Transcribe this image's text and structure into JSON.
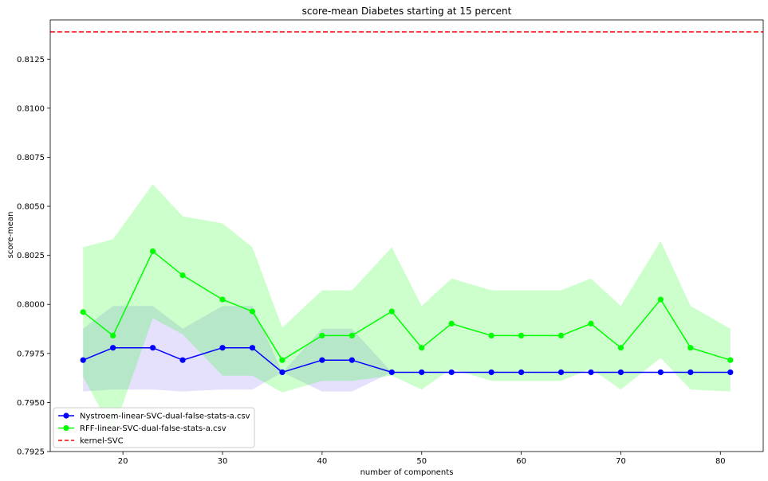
{
  "chart_data": {
    "type": "line",
    "title": "score-mean Diabetes starting at 15 percent",
    "xlabel": "number of components",
    "ylabel": "score-mean",
    "xlim": [
      12.7,
      84.3
    ],
    "ylim": [
      0.7925,
      0.8145
    ],
    "xticks": [
      20,
      30,
      40,
      50,
      60,
      70,
      80
    ],
    "yticks": [
      0.7925,
      0.795,
      0.7975,
      0.8,
      0.8025,
      0.805,
      0.8075,
      0.81,
      0.8125
    ],
    "xtick_labels": [
      "20",
      "30",
      "40",
      "50",
      "60",
      "70",
      "80"
    ],
    "ytick_labels": [
      "0.7925",
      "0.7950",
      "0.7975",
      "0.8000",
      "0.8025",
      "0.8050",
      "0.8075",
      "0.8100",
      "0.8125"
    ],
    "x": [
      16,
      19,
      23,
      26,
      30,
      33,
      36,
      40,
      43,
      47,
      50,
      53,
      57,
      60,
      64,
      67,
      70,
      74,
      77,
      81
    ],
    "series": [
      {
        "name": "Nystroem-linear-SVC-dual-false-stats-a.csv",
        "color": "#0000ff",
        "fill_color": "#7b68ee",
        "values": [
          0.79716,
          0.79779,
          0.79779,
          0.79716,
          0.79779,
          0.79779,
          0.79654,
          0.79716,
          0.79716,
          0.79654,
          0.79654,
          0.79654,
          0.79654,
          0.79654,
          0.79654,
          0.79654,
          0.79654,
          0.79654,
          0.79654,
          0.79654
        ],
        "upper": [
          0.79876,
          0.79992,
          0.79992,
          0.79876,
          0.79992,
          0.79992,
          0.79654,
          0.79876,
          0.79876,
          0.79654,
          0.79654,
          0.79654,
          0.79654,
          0.79654,
          0.79654,
          0.79654,
          0.79654,
          0.79654,
          0.79654,
          0.79654
        ],
        "lower": [
          0.79556,
          0.79566,
          0.79566,
          0.79556,
          0.79566,
          0.79566,
          0.79654,
          0.79556,
          0.79556,
          0.79654,
          0.79654,
          0.79654,
          0.79654,
          0.79654,
          0.79654,
          0.79654,
          0.79654,
          0.79654,
          0.79654,
          0.79654
        ]
      },
      {
        "name": "RFF-linear-SVC-dual-false-stats-a.csv",
        "color": "#00ff00",
        "fill_color": "#00ff00",
        "values": [
          0.79961,
          0.79841,
          0.80271,
          0.80148,
          0.80025,
          0.79964,
          0.79716,
          0.79841,
          0.79841,
          0.79964,
          0.79779,
          0.79902,
          0.79841,
          0.79841,
          0.79841,
          0.79902,
          0.79779,
          0.80025,
          0.79779,
          0.79716
        ],
        "upper": [
          0.80291,
          0.80332,
          0.80613,
          0.80449,
          0.80413,
          0.80291,
          0.79881,
          0.80072,
          0.80072,
          0.80291,
          0.79992,
          0.80132,
          0.80072,
          0.80072,
          0.80072,
          0.80132,
          0.79992,
          0.80323,
          0.79992,
          0.79876
        ],
        "lower": [
          0.79631,
          0.7935,
          0.79929,
          0.79847,
          0.79637,
          0.79637,
          0.79551,
          0.7961,
          0.7961,
          0.79637,
          0.79566,
          0.79672,
          0.7961,
          0.7961,
          0.7961,
          0.79672,
          0.79566,
          0.79727,
          0.79566,
          0.79556
        ]
      }
    ],
    "reference_line": {
      "name": "kernel-SVC",
      "value": 0.81389,
      "color": "#ff0000",
      "style": "dashed"
    },
    "legend_placement": "lower-left",
    "grid": false
  }
}
